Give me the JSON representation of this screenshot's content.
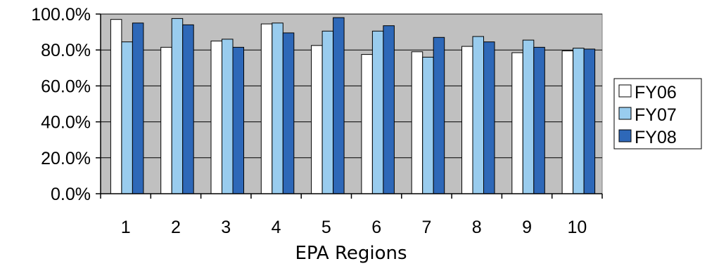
{
  "chart_data": {
    "type": "bar",
    "title": "",
    "xlabel": "EPA Regions",
    "ylabel": "",
    "categories": [
      "1",
      "2",
      "3",
      "4",
      "5",
      "6",
      "7",
      "8",
      "9",
      "10"
    ],
    "series": [
      {
        "name": "FY06",
        "color": "#ffffff",
        "values": [
          97.0,
          81.5,
          85.0,
          94.5,
          82.5,
          77.5,
          79.0,
          82.0,
          78.5,
          79.5
        ]
      },
      {
        "name": "FY07",
        "color": "#99ccee",
        "values": [
          84.5,
          97.5,
          86.0,
          95.0,
          90.5,
          90.5,
          76.0,
          87.5,
          85.5,
          81.0
        ]
      },
      {
        "name": "FY08",
        "color": "#2e68b8",
        "values": [
          95.0,
          94.0,
          81.5,
          89.5,
          98.0,
          93.5,
          87.0,
          84.5,
          81.5,
          80.5
        ]
      }
    ],
    "ylim": [
      0,
      100
    ],
    "yticks": [
      "0.0%",
      "20.0%",
      "40.0%",
      "60.0%",
      "80.0%",
      "100.0%"
    ],
    "grid": true,
    "plot_background": "#c0c0c0",
    "legend_position": "right"
  }
}
